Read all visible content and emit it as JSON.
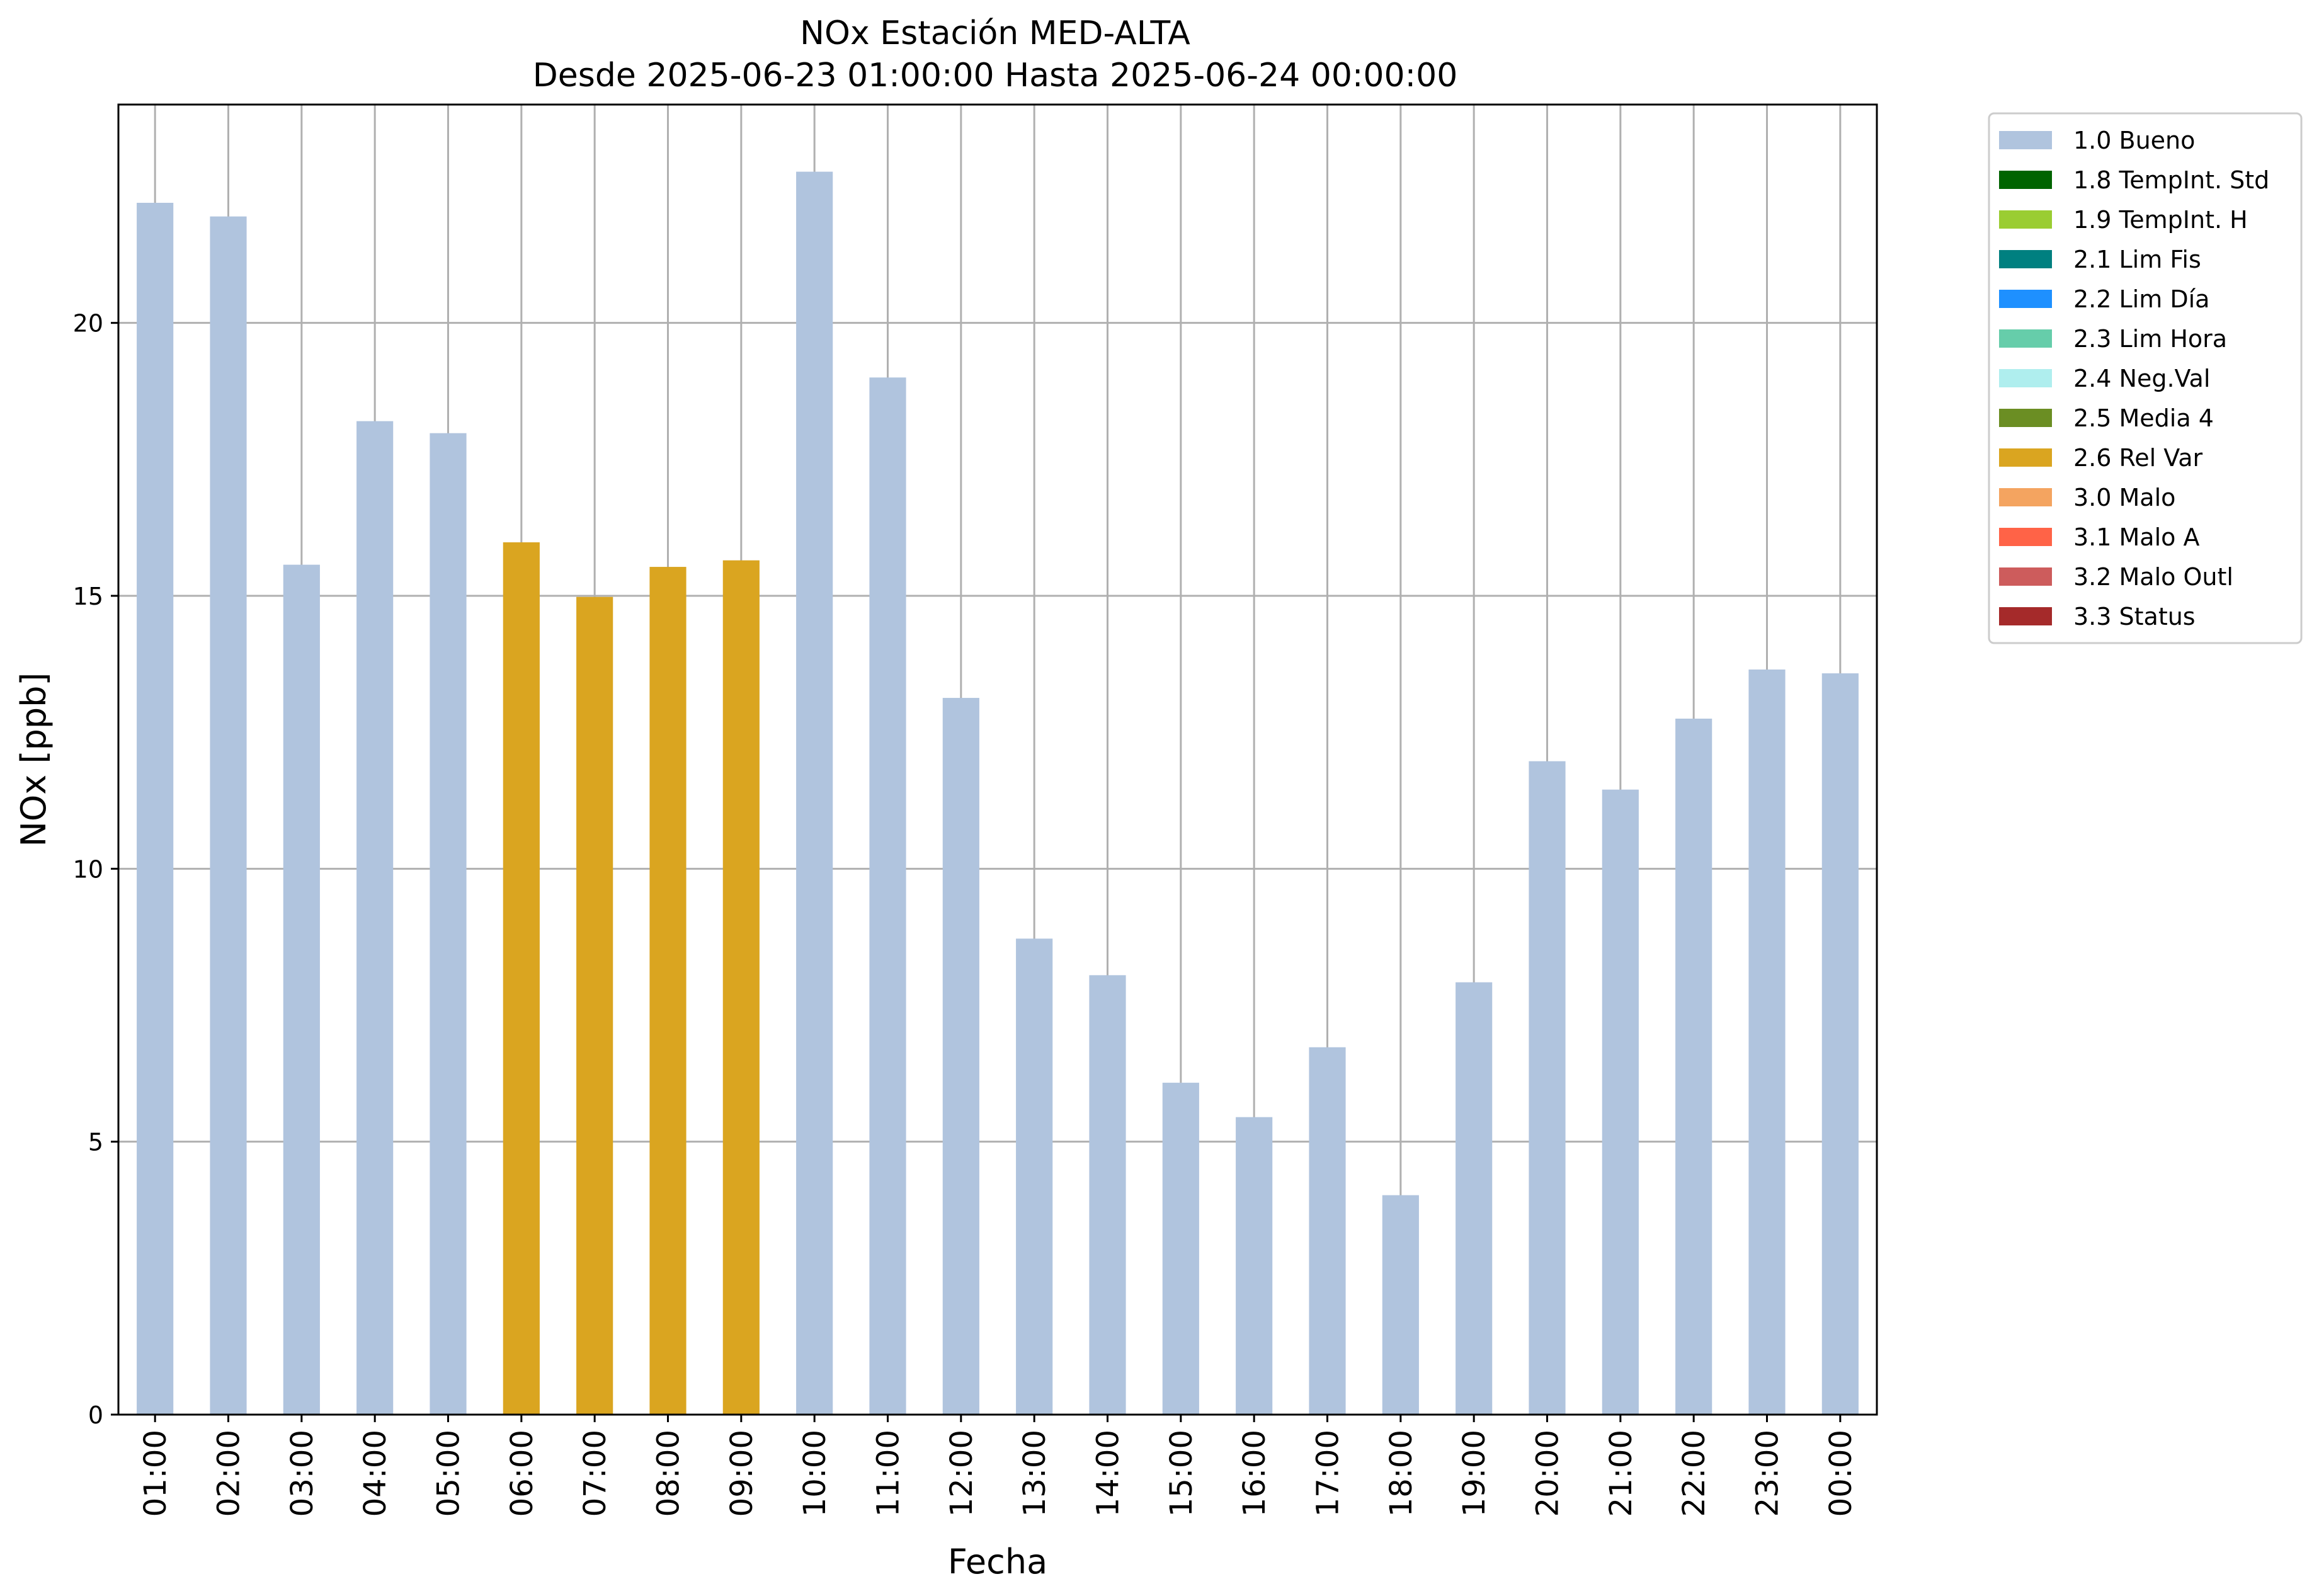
{
  "chart_data": {
    "type": "bar",
    "title": "NOx Estación MED-ALTA",
    "subtitle": "Desde 2025-06-23 01:00:00 Hasta 2025-06-24 00:00:00",
    "xlabel": "Fecha",
    "ylabel": "NOx [ppb]",
    "ylim": [
      0,
      24
    ],
    "yticks": [
      0,
      5,
      10,
      15,
      20
    ],
    "grid": true,
    "legend_position": "outside-top-right",
    "categories": [
      "01:00",
      "02:00",
      "03:00",
      "04:00",
      "05:00",
      "06:00",
      "07:00",
      "08:00",
      "09:00",
      "10:00",
      "11:00",
      "12:00",
      "13:00",
      "14:00",
      "15:00",
      "16:00",
      "17:00",
      "18:00",
      "19:00",
      "20:00",
      "21:00",
      "22:00",
      "23:00",
      "00:00"
    ],
    "values": [
      22.2,
      21.95,
      15.57,
      18.2,
      17.98,
      15.98,
      14.98,
      15.53,
      15.65,
      22.77,
      19.0,
      13.13,
      8.72,
      8.05,
      6.08,
      5.45,
      6.73,
      4.02,
      7.92,
      11.97,
      11.45,
      12.75,
      13.65,
      13.58
    ],
    "flags": [
      "1.0 Bueno",
      "1.0 Bueno",
      "1.0 Bueno",
      "1.0 Bueno",
      "1.0 Bueno",
      "2.6 Rel Var",
      "2.6 Rel Var",
      "2.6 Rel Var",
      "2.6 Rel Var",
      "1.0 Bueno",
      "1.0 Bueno",
      "1.0 Bueno",
      "1.0 Bueno",
      "1.0 Bueno",
      "1.0 Bueno",
      "1.0 Bueno",
      "1.0 Bueno",
      "1.0 Bueno",
      "1.0 Bueno",
      "1.0 Bueno",
      "1.0 Bueno",
      "1.0 Bueno",
      "1.0 Bueno",
      "1.0 Bueno"
    ],
    "legend": [
      {
        "label": "1.0 Bueno",
        "color": "#b0c4de"
      },
      {
        "label": "1.8 TempInt. Std",
        "color": "#006400"
      },
      {
        "label": "1.9 TempInt. H",
        "color": "#9acd32"
      },
      {
        "label": "2.1 Lim Fis",
        "color": "#008080"
      },
      {
        "label": "2.2 Lim Día",
        "color": "#1e90ff"
      },
      {
        "label": "2.3 Lim Hora",
        "color": "#66cdaa"
      },
      {
        "label": "2.4 Neg.Val",
        "color": "#afeeee"
      },
      {
        "label": "2.5 Media 4",
        "color": "#6b8e23"
      },
      {
        "label": "2.6 Rel Var",
        "color": "#daa520"
      },
      {
        "label": "3.0 Malo",
        "color": "#f4a460"
      },
      {
        "label": "3.1 Malo A",
        "color": "#ff6347"
      },
      {
        "label": "3.2 Malo Outl",
        "color": "#cd5c5c"
      },
      {
        "label": "3.3 Status",
        "color": "#a52a2a"
      }
    ]
  }
}
